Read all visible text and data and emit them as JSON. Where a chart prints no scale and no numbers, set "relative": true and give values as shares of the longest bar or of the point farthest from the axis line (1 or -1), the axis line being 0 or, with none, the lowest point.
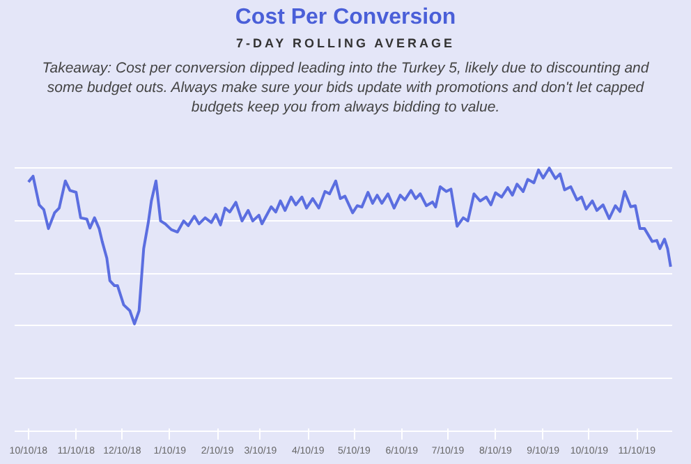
{
  "chart_data": {
    "type": "line",
    "title": "Cost Per Conversion",
    "subtitle": "7-DAY ROLLING AVERAGE",
    "annotations": [
      "Takeaway: Cost per conversion dipped leading into the Turkey 5, likely due to discounting and some budget outs. Always make sure your bids update with promotions and don't let capped budgets keep you from always bidding to value."
    ],
    "relative": true,
    "grid": "y",
    "marker": "none",
    "line_style": "solid",
    "xlim": [
      "2018-10-01",
      "2019-12-03"
    ],
    "xticks": [
      {
        "value": "2018-10-10",
        "label": "10/10/18"
      },
      {
        "value": "2018-11-10",
        "label": "11/10/18"
      },
      {
        "value": "2018-12-10",
        "label": "12/10/18"
      },
      {
        "value": "2019-01-10",
        "label": "1/10/19"
      },
      {
        "value": "2019-02-10",
        "label": "2/10/19"
      },
      {
        "value": "2019-03-10",
        "label": "3/10/19"
      },
      {
        "value": "2019-04-10",
        "label": "4/10/19"
      },
      {
        "value": "2019-05-10",
        "label": "5/10/19"
      },
      {
        "value": "2019-06-10",
        "label": "6/10/19"
      },
      {
        "value": "2019-07-10",
        "label": "7/10/19"
      },
      {
        "value": "2019-08-10",
        "label": "8/10/19"
      },
      {
        "value": "2019-09-10",
        "label": "9/10/19"
      },
      {
        "value": "2019-10-10",
        "label": "10/10/19"
      },
      {
        "value": "2019-11-10",
        "label": "11/10/19"
      }
    ],
    "x": [
      "2018-10-10",
      "2018-10-13",
      "2018-10-17",
      "2018-10-20",
      "2018-10-23",
      "2018-10-27",
      "2018-10-30",
      "2018-11-03",
      "2018-11-06",
      "2018-11-10",
      "2018-11-13",
      "2018-11-17",
      "2018-11-19",
      "2018-11-22",
      "2018-11-25",
      "2018-11-27",
      "2018-11-30",
      "2018-12-02",
      "2018-12-05",
      "2018-12-07",
      "2018-12-11",
      "2018-12-15",
      "2018-12-18",
      "2018-12-21",
      "2018-12-24",
      "2018-12-27",
      "2018-12-29",
      "2019-01-01",
      "2019-01-04",
      "2019-01-07",
      "2019-01-11",
      "2019-01-15",
      "2019-01-19",
      "2019-01-22",
      "2019-01-26",
      "2019-01-29",
      "2019-02-02",
      "2019-02-06",
      "2019-02-09",
      "2019-02-12",
      "2019-02-15",
      "2019-02-18",
      "2019-02-22",
      "2019-02-26",
      "2019-03-02",
      "2019-03-05",
      "2019-03-09",
      "2019-03-11",
      "2019-03-17",
      "2019-03-20",
      "2019-03-23",
      "2019-03-26",
      "2019-03-30",
      "2019-04-02",
      "2019-04-06",
      "2019-04-09",
      "2019-04-13",
      "2019-04-17",
      "2019-04-21",
      "2019-04-24",
      "2019-04-28",
      "2019-05-01",
      "2019-05-04",
      "2019-05-09",
      "2019-05-12",
      "2019-05-15",
      "2019-05-19",
      "2019-05-22",
      "2019-05-25",
      "2019-05-28",
      "2019-06-01",
      "2019-06-05",
      "2019-06-09",
      "2019-06-12",
      "2019-06-16",
      "2019-06-19",
      "2019-06-22",
      "2019-06-26",
      "2019-06-30",
      "2019-07-02",
      "2019-07-05",
      "2019-07-09",
      "2019-07-12",
      "2019-07-16",
      "2019-07-20",
      "2019-07-23",
      "2019-07-27",
      "2019-07-31",
      "2019-08-04",
      "2019-08-07",
      "2019-08-10",
      "2019-08-14",
      "2019-08-18",
      "2019-08-21",
      "2019-08-24",
      "2019-08-28",
      "2019-08-31",
      "2019-09-04",
      "2019-09-07",
      "2019-09-10",
      "2019-09-14",
      "2019-09-18",
      "2019-09-21",
      "2019-09-24",
      "2019-09-28",
      "2019-10-02",
      "2019-10-05",
      "2019-10-08",
      "2019-10-12",
      "2019-10-15",
      "2019-10-19",
      "2019-10-23",
      "2019-10-27",
      "2019-10-30",
      "2019-11-02",
      "2019-11-06",
      "2019-11-09",
      "2019-11-12",
      "2019-11-15",
      "2019-11-20",
      "2019-11-23",
      "2019-11-25",
      "2019-11-28",
      "2019-11-30",
      "2019-12-02"
    ],
    "series": [
      {
        "color": "#5b6ee0",
        "values": [
          0.947,
          0.969,
          0.86,
          0.842,
          0.77,
          0.83,
          0.848,
          0.951,
          0.915,
          0.908,
          0.811,
          0.806,
          0.772,
          0.811,
          0.77,
          0.721,
          0.658,
          0.572,
          0.553,
          0.553,
          0.48,
          0.458,
          0.408,
          0.458,
          0.694,
          0.793,
          0.875,
          0.951,
          0.799,
          0.788,
          0.766,
          0.757,
          0.799,
          0.781,
          0.817,
          0.788,
          0.811,
          0.793,
          0.824,
          0.784,
          0.848,
          0.833,
          0.87,
          0.799,
          0.839,
          0.799,
          0.821,
          0.788,
          0.853,
          0.833,
          0.875,
          0.839,
          0.89,
          0.86,
          0.89,
          0.848,
          0.884,
          0.848,
          0.911,
          0.902,
          0.951,
          0.884,
          0.893,
          0.83,
          0.857,
          0.852,
          0.908,
          0.866,
          0.897,
          0.866,
          0.902,
          0.848,
          0.897,
          0.879,
          0.915,
          0.884,
          0.902,
          0.857,
          0.871,
          0.852,
          0.929,
          0.911,
          0.92,
          0.779,
          0.811,
          0.799,
          0.902,
          0.875,
          0.89,
          0.86,
          0.906,
          0.89,
          0.926,
          0.897,
          0.939,
          0.911,
          0.957,
          0.944,
          0.993,
          0.962,
          1,
          0.96,
          0.978,
          0.917,
          0.929,
          0.879,
          0.89,
          0.844,
          0.875,
          0.839,
          0.86,
          0.808,
          0.857,
          0.835,
          0.911,
          0.853,
          0.857,
          0.77,
          0.77,
          0.721,
          0.725,
          0.694,
          0.73,
          0.694,
          0.625
        ]
      }
    ]
  }
}
